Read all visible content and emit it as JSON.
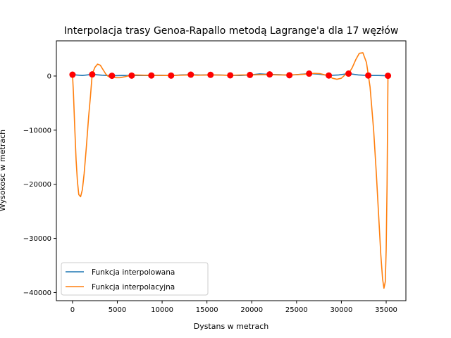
{
  "chart_data": {
    "type": "line",
    "title": "Interpolacja trasy Genoa-Rapallo metodą Lagrange'a dla 17 węzłów",
    "xlabel": "Dystans w metrach",
    "ylabel": "Wysokość w metrach",
    "xlim": [
      -1800,
      37200
    ],
    "ylim": [
      -41500,
      6500
    ],
    "xticks": [
      0,
      5000,
      10000,
      15000,
      20000,
      25000,
      30000,
      35000
    ],
    "xtick_labels": [
      "0",
      "5000",
      "10000",
      "15000",
      "20000",
      "25000",
      "30000",
      "35000"
    ],
    "yticks": [
      0,
      -10000,
      -20000,
      -30000,
      -40000
    ],
    "ytick_labels": [
      "0",
      "−10000",
      "−20000",
      "−30000",
      "−40000"
    ],
    "grid": false,
    "legend_position": "lower-left",
    "colors": {
      "interpolated": "#1f77b4",
      "interpolating": "#ff7f0e",
      "nodes": "#ff0000"
    },
    "series": [
      {
        "name": "Funkcja interpolowana",
        "color": "#1f77b4",
        "x": [
          0,
          1100,
          2200,
          3300,
          4400,
          5500,
          6600,
          7700,
          8800,
          9900,
          11000,
          12100,
          13200,
          14300,
          15400,
          16500,
          17600,
          18700,
          19800,
          20900,
          22000,
          23100,
          24200,
          25300,
          26400,
          27500,
          28600,
          29700,
          30800,
          31900,
          33000,
          34100,
          35200
        ],
        "y": [
          250,
          100,
          300,
          150,
          50,
          100,
          80,
          120,
          100,
          130,
          80,
          200,
          250,
          180,
          220,
          180,
          130,
          100,
          200,
          400,
          300,
          250,
          150,
          300,
          450,
          350,
          100,
          200,
          450,
          200,
          100,
          100,
          50
        ]
      },
      {
        "name": "Funkcja interpolacyjna",
        "color": "#ff7f0e",
        "x": [
          0,
          100,
          250,
          400,
          550,
          700,
          900,
          1100,
          1300,
          1550,
          1800,
          2000,
          2200,
          2500,
          2800,
          3100,
          3400,
          3700,
          4000,
          4400,
          4800,
          5300,
          5800,
          6400,
          7000,
          8000,
          9000,
          10000,
          11000,
          12000,
          13000,
          14000,
          15000,
          16000,
          17000,
          18000,
          19000,
          20000,
          21000,
          22000,
          23000,
          24000,
          25000,
          26000,
          26500,
          27000,
          27600,
          28200,
          28600,
          29000,
          29500,
          30000,
          30400,
          30800,
          31200,
          31600,
          32000,
          32400,
          32800,
          33200,
          33600,
          33900,
          34200,
          34400,
          34600,
          34750,
          34900,
          35000,
          35100,
          35200
        ],
        "y": [
          250,
          -3000,
          -9500,
          -15500,
          -19500,
          -21900,
          -22300,
          -21000,
          -18000,
          -13000,
          -7500,
          -3800,
          400,
          1600,
          2200,
          2000,
          1200,
          400,
          -100,
          -100,
          -300,
          -300,
          -150,
          100,
          200,
          150,
          150,
          100,
          100,
          150,
          200,
          150,
          200,
          200,
          150,
          150,
          200,
          200,
          250,
          250,
          200,
          200,
          250,
          350,
          450,
          500,
          450,
          200,
          -50,
          -400,
          -600,
          -400,
          200,
          450,
          1500,
          3000,
          4200,
          4300,
          2500,
          -2000,
          -10000,
          -18000,
          -27000,
          -33000,
          -37500,
          -39200,
          -38000,
          -32000,
          -20000,
          50
        ]
      }
    ],
    "nodes": {
      "color": "#ff0000",
      "x": [
        0,
        2200,
        4400,
        6600,
        8800,
        11000,
        13200,
        15400,
        17600,
        19800,
        22000,
        24200,
        26400,
        28600,
        30800,
        33000,
        35200
      ],
      "y": [
        250,
        300,
        50,
        80,
        100,
        80,
        250,
        220,
        130,
        200,
        300,
        150,
        450,
        100,
        450,
        100,
        50
      ]
    }
  }
}
